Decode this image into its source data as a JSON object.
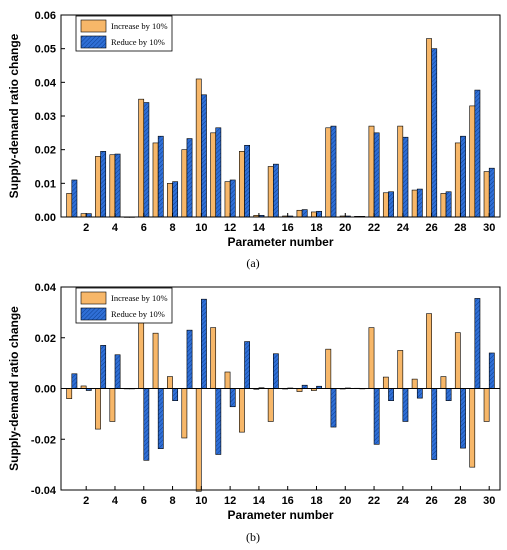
{
  "chart_data": [
    {
      "type": "bar",
      "panel_label": "(a)",
      "xlabel": "Parameter number",
      "ylabel": "Supply-demand ratio change",
      "ylim": [
        0,
        0.06
      ],
      "yticks": [
        "0.00",
        "0.01",
        "0.02",
        "0.03",
        "0.04",
        "0.05",
        "0.06"
      ],
      "xticks": [
        "2",
        "4",
        "6",
        "8",
        "10",
        "12",
        "14",
        "16",
        "18",
        "20",
        "22",
        "24",
        "26",
        "28",
        "30"
      ],
      "categories": [
        1,
        2,
        3,
        4,
        5,
        6,
        7,
        8,
        9,
        10,
        11,
        12,
        13,
        14,
        15,
        16,
        17,
        18,
        19,
        20,
        21,
        22,
        23,
        24,
        25,
        26,
        27,
        28,
        29,
        30
      ],
      "legend_position": "top-left",
      "series": [
        {
          "name": "Increase by 10%",
          "color": "#f7b769",
          "values": [
            0.007,
            0.001,
            0.018,
            0.0185,
            0,
            0.035,
            0.022,
            0.01,
            0.02,
            0.041,
            0.025,
            0.0105,
            0.0195,
            0.0005,
            0.015,
            0.0003,
            0.002,
            0.0015,
            0.0265,
            0.0003,
            0.0002,
            0.027,
            0.0072,
            0.027,
            0.008,
            0.053,
            0.007,
            0.022,
            0.033,
            0.0135
          ]
        },
        {
          "name": "Reduce by 10%",
          "color": "#2f6fd6",
          "values": [
            0.011,
            0.001,
            0.0195,
            0.0187,
            0,
            0.034,
            0.024,
            0.0105,
            0.0233,
            0.0363,
            0.0265,
            0.011,
            0.0213,
            0.0005,
            0.0157,
            0.0003,
            0.0022,
            0.0017,
            0.027,
            0.0003,
            0.0002,
            0.025,
            0.0075,
            0.0237,
            0.0083,
            0.05,
            0.0075,
            0.024,
            0.0377,
            0.0145
          ]
        }
      ]
    },
    {
      "type": "bar",
      "panel_label": "(b)",
      "xlabel": "Parameter number",
      "ylabel": "Supply-demand ratio change",
      "ylim": [
        -0.04,
        0.04
      ],
      "yticks": [
        "-0.04",
        "-0.02",
        "0.00",
        "0.02",
        "0.04"
      ],
      "xticks": [
        "2",
        "4",
        "6",
        "8",
        "10",
        "12",
        "14",
        "16",
        "18",
        "20",
        "22",
        "24",
        "26",
        "28",
        "30"
      ],
      "categories": [
        1,
        2,
        3,
        4,
        5,
        6,
        7,
        8,
        9,
        10,
        11,
        12,
        13,
        14,
        15,
        16,
        17,
        18,
        19,
        20,
        21,
        22,
        23,
        24,
        25,
        26,
        27,
        28,
        29,
        30
      ],
      "legend_position": "top-left",
      "series": [
        {
          "name": "Increase by 10%",
          "color": "#f7b769",
          "values": [
            -0.004,
            0.001,
            -0.016,
            -0.013,
            0,
            0.029,
            0.0218,
            0.0047,
            -0.0195,
            -0.0405,
            0.024,
            0.0065,
            -0.0172,
            -0.0003,
            -0.013,
            -0.0002,
            -0.0012,
            -0.0008,
            0.0155,
            -0.0002,
            0.0001,
            0.024,
            0.0045,
            0.015,
            0.0037,
            0.0295,
            0.0047,
            0.022,
            -0.031,
            -0.013
          ]
        },
        {
          "name": "Reduce by 10%",
          "color": "#2f6fd6",
          "values": [
            0.0058,
            -0.0008,
            0.017,
            0.0133,
            0,
            -0.0283,
            -0.0237,
            -0.0048,
            0.023,
            0.0352,
            -0.026,
            -0.0072,
            0.0185,
            0.0003,
            0.0137,
            0.0002,
            0.0013,
            0.0009,
            -0.0152,
            0.0002,
            -0.0001,
            -0.022,
            -0.0048,
            -0.013,
            -0.0038,
            -0.028,
            -0.0048,
            -0.0235,
            0.0355,
            0.014
          ]
        }
      ]
    }
  ]
}
